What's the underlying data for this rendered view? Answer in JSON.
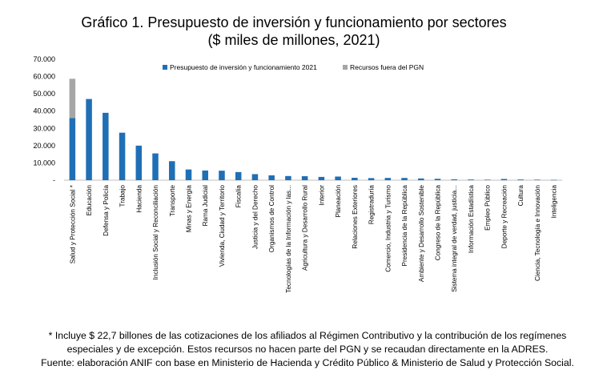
{
  "chart_data": {
    "type": "bar",
    "stacked": true,
    "title_lines": [
      "Gráfico 1. Presupuesto de inversión y funcionamiento por sectores",
      "($ miles de millones, 2021)"
    ],
    "xlabel": "",
    "ylabel": "",
    "ylim": [
      0,
      70000
    ],
    "yticks": [
      "-",
      "10.000",
      "20.000",
      "30.000",
      "40.000",
      "50.000",
      "60.000",
      "70.000"
    ],
    "grid": false,
    "legend_position": "top",
    "categories": [
      "Salud y Protección Social *",
      "Educación",
      "Defensa y Policía",
      "Trabajo",
      "Hacienda",
      "Inclusión Social y Reconciliación",
      "Transporte",
      "Minas y Energía",
      "Rama Judicial",
      "Vivienda, Ciudad y Territorio",
      "Fiscalía",
      "Justicia y del Derecho",
      "Organismos de Control",
      "Tecnologías de la Información y las...",
      "Agricultura y Desarrollo Rural",
      "Interior",
      "Planeación",
      "Relaciones Exteriores",
      "Registraduría",
      "Comercio, Industria y Turismo",
      "Presidencia de la República",
      "Ambiente y Desarrollo Sostenible",
      "Congreso de la República",
      "Sistema integral de verdad, justicia...",
      "Información Estadística",
      "Empleo Público",
      "Deporte y Recreación",
      "Cultura",
      "Ciencia, Tecnología e Innovación",
      "Inteligencia"
    ],
    "series": [
      {
        "name": "Presupuesto de inversión y funcionamiento 2021",
        "color": "#1f6fb5",
        "values": [
          36000,
          47000,
          39000,
          27500,
          20000,
          15500,
          11000,
          6200,
          5600,
          5500,
          4700,
          3500,
          2800,
          2400,
          2300,
          1900,
          2100,
          1400,
          1200,
          1300,
          1300,
          1000,
          800,
          500,
          400,
          300,
          700,
          400,
          300,
          200
        ]
      },
      {
        "name": "Recursos fuera del PGN",
        "color": "#a6a6a6",
        "values": [
          22700,
          0,
          0,
          0,
          0,
          0,
          0,
          0,
          0,
          0,
          0,
          0,
          0,
          0,
          0,
          0,
          0,
          0,
          0,
          0,
          0,
          0,
          0,
          0,
          0,
          0,
          0,
          0,
          0,
          0
        ]
      }
    ]
  },
  "notes": [
    "* Incluye $ 22,7 billones de las cotizaciones de los afiliados al Régimen Contributivo y la contribución de los regímenes",
    "especiales y de excepción. Estos recursos no hacen parte del PGN y se recaudan directamente en la ADRES.",
    "Fuente: elaboración ANIF con base en Ministerio de Hacienda y Crédito Público & Ministerio de Salud y Protección Social."
  ]
}
